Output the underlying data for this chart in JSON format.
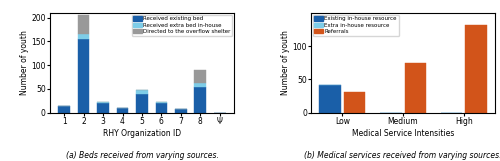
{
  "left": {
    "categories": [
      "1",
      "2",
      "3",
      "4",
      "5",
      "6",
      "7",
      "8",
      "Ψ"
    ],
    "existing_bed": [
      15,
      155,
      20,
      10,
      40,
      20,
      7,
      55,
      0
    ],
    "extra_bed": [
      0,
      10,
      2,
      0,
      8,
      2,
      0,
      8,
      0
    ],
    "overflow": [
      0,
      40,
      0,
      0,
      0,
      0,
      0,
      27,
      0
    ],
    "ylabel": "Number of youth",
    "xlabel": "RHY Organization ID",
    "ylim": [
      0,
      210
    ],
    "yticks": [
      0,
      50,
      100,
      150,
      200
    ],
    "legend_labels": [
      "Received existing bed",
      "Received extra bed in-house",
      "Directed to the overflow shelter"
    ],
    "caption": "(a) Beds received from varying sources.",
    "color_existing": "#1a5fa8",
    "color_extra": "#7ecde8",
    "color_overflow": "#999999"
  },
  "right": {
    "categories": [
      "Low",
      "Medium",
      "High"
    ],
    "existing_inhouse": [
      42,
      0,
      0
    ],
    "extra_inhouse": [
      0,
      0,
      0
    ],
    "referrals": [
      31,
      75,
      132
    ],
    "ylabel": "Number of youth",
    "xlabel": "Medical Service Intensities",
    "ylim": [
      0,
      150
    ],
    "yticks": [
      0,
      50,
      100
    ],
    "legend_labels": [
      "Existing in-house resource",
      "Extra in-house resource",
      "Referrals"
    ],
    "caption": "(b) Medical services received from varying sources.",
    "color_existing": "#1a5fa8",
    "color_extra": "#7ecde8",
    "color_referrals": "#d2541a"
  }
}
